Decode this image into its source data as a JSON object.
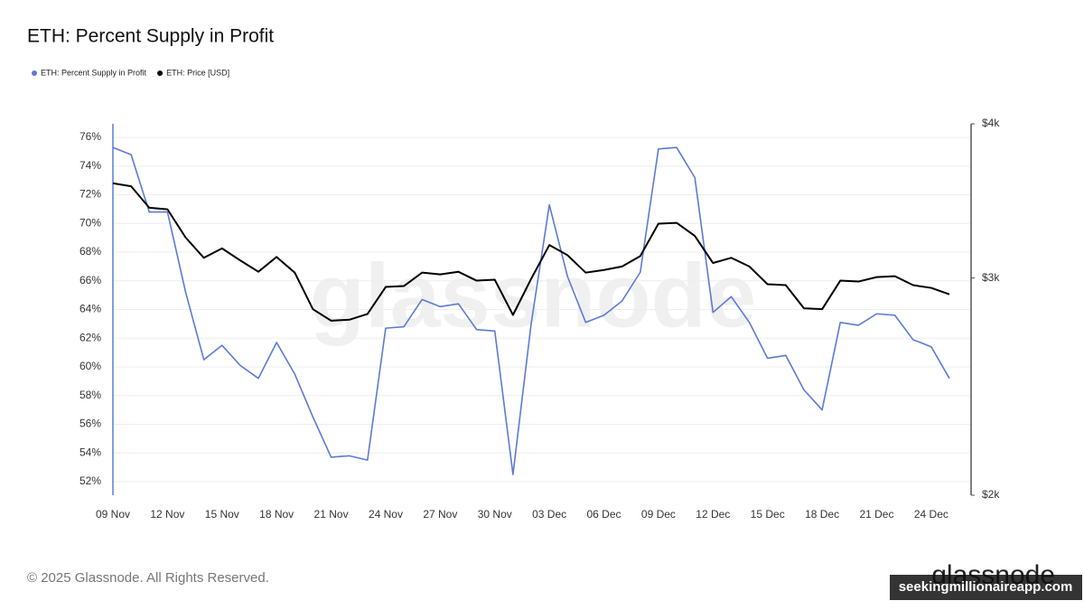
{
  "chart_data": {
    "type": "line",
    "title": "ETH: Percent Supply in Profit",
    "watermark": "glassnode",
    "footer": "© 2025 Glassnode. All Rights Reserved.",
    "logo": "glassnode",
    "site_label": "seekingmillionaireapp.com",
    "categories": [
      "09 Nov",
      null,
      null,
      "12 Nov",
      null,
      null,
      "15 Nov",
      null,
      null,
      "18 Nov",
      null,
      null,
      "21 Nov",
      null,
      null,
      "24 Nov",
      null,
      null,
      "27 Nov",
      null,
      null,
      "30 Nov",
      null,
      null,
      "03 Dec",
      null,
      null,
      "06 Dec",
      null,
      null,
      "09 Dec",
      null,
      null,
      "12 Dec",
      null,
      null,
      "15 Dec",
      null,
      null,
      "18 Dec",
      null,
      null,
      "21 Dec",
      null,
      null,
      "24 Dec",
      null
    ],
    "series": [
      {
        "name": "ETH: Percent Supply in Profit",
        "color": "#5b7bd5",
        "axis": "y",
        "values": [
          75.3,
          74.8,
          70.8,
          70.8,
          65.2,
          60.5,
          61.5,
          60.1,
          59.2,
          61.7,
          59.5,
          56.5,
          53.7,
          53.8,
          53.5,
          62.7,
          62.8,
          64.7,
          64.2,
          64.4,
          62.6,
          62.5,
          52.5,
          63.0,
          71.3,
          66.3,
          63.1,
          63.6,
          64.6,
          66.6,
          75.2,
          75.3,
          73.2,
          63.8,
          64.9,
          63.1,
          60.6,
          60.8,
          58.4,
          57.0,
          63.1,
          62.9,
          63.7,
          63.6,
          61.9,
          61.4,
          59.2
        ]
      },
      {
        "name": "ETH: Price [USD]",
        "color": "#000000",
        "axis": "y2",
        "values": [
          3580,
          3560,
          3420,
          3410,
          3235,
          3115,
          3170,
          3100,
          3035,
          3120,
          3030,
          2830,
          2770,
          2775,
          2805,
          2950,
          2955,
          3030,
          3020,
          3035,
          2985,
          2990,
          2800,
          2995,
          3190,
          3130,
          3030,
          3045,
          3065,
          3125,
          3320,
          3325,
          3245,
          3085,
          3115,
          3065,
          2965,
          2960,
          2835,
          2830,
          2985,
          2980,
          3005,
          3010,
          2960,
          2945,
          2910
        ]
      }
    ],
    "ylim": [
      51.05,
      76.95
    ],
    "yticks": [
      {
        "value": 52,
        "label": "52%"
      },
      {
        "value": 54,
        "label": "54%"
      },
      {
        "value": 56,
        "label": "56%"
      },
      {
        "value": 58,
        "label": "58%"
      },
      {
        "value": 60,
        "label": "60%"
      },
      {
        "value": 62,
        "label": "62%"
      },
      {
        "value": 64,
        "label": "64%"
      },
      {
        "value": 66,
        "label": "66%"
      },
      {
        "value": 68,
        "label": "68%"
      },
      {
        "value": 70,
        "label": "70%"
      },
      {
        "value": 72,
        "label": "72%"
      },
      {
        "value": 74,
        "label": "74%"
      },
      {
        "value": 76,
        "label": "76%"
      }
    ],
    "y2lim": [
      2000,
      4000
    ],
    "y2log": true,
    "y2ticks": [
      {
        "value": 2000,
        "label": "$2k"
      },
      {
        "value": 3000,
        "label": "$3k"
      },
      {
        "value": 4000,
        "label": "$4k"
      }
    ],
    "grid": true,
    "legend": "top-left"
  }
}
